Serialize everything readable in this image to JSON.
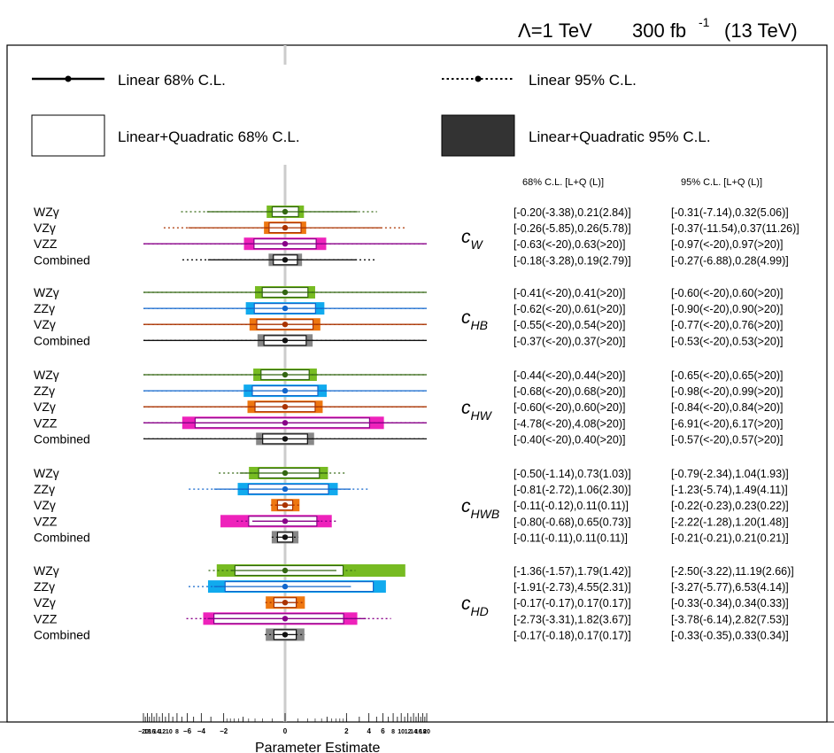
{
  "header": {
    "lambda": "Λ=1 TeV",
    "lumi_base": "300 fb",
    "lumi_exp": "-1",
    "energy": "(13 TeV)"
  },
  "legend": {
    "linear68": "Linear 68% C.L.",
    "linear95": "Linear 95% C.L.",
    "lq68": "Linear+Quadratic 68% C.L.",
    "lq95": "Linear+Quadratic 95% C.L."
  },
  "column_headers": {
    "c68": "68% C.L. [L+Q (L)]",
    "c95": "95% C.L. [L+Q (L)]"
  },
  "colors": {
    "WZγ": "#77bb22",
    "ZZγ": "#11aaee",
    "VZγ": "#ee7711",
    "VZZ": "#ee22bb",
    "Combined": "#888888",
    "lq95_legend": "#333333",
    "axis_band": "#cccccc"
  },
  "line_colors": {
    "WZγ": "#336611",
    "ZZγ": "#1166cc",
    "VZγ": "#aa3300",
    "VZZ": "#880088",
    "Combined": "#111111"
  },
  "chart_data": {
    "type": "scatter",
    "xlabel": "Parameter Estimate",
    "xlim": [
      -20,
      20
    ],
    "x_scale": "sign-log",
    "tick_labels": [
      "−20",
      "18",
      "16",
      "14",
      "12",
      "10",
      "8",
      "−6",
      "−4",
      "−2",
      "0",
      "2",
      "4",
      "6",
      "8",
      "10",
      "12",
      "14",
      "16",
      "18",
      "20"
    ],
    "groups": [
      {
        "coef": "c",
        "sub": "W",
        "rows": [
          {
            "label": "WZγ",
            "lq68": [
              -0.2,
              0.21
            ],
            "l68": [
              -3.38,
              2.84
            ],
            "lq95": [
              -0.31,
              0.32
            ],
            "l95": [
              -7.14,
              5.06
            ],
            "t68": "[-0.20(-3.38),0.21(2.84)]",
            "t95": "[-0.31(-7.14),0.32(5.06)]"
          },
          {
            "label": "VZγ",
            "lq68": [
              -0.26,
              0.26
            ],
            "l68": [
              -5.85,
              5.78
            ],
            "lq95": [
              -0.37,
              0.37
            ],
            "l95": [
              -11.54,
              11.26
            ],
            "t68": "[-0.26(-5.85),0.26(5.78)]",
            "t95": "[-0.37(-11.54),0.37(11.26)]"
          },
          {
            "label": "VZZ",
            "lq68": [
              -0.63,
              0.63
            ],
            "l68": [
              -20,
              20
            ],
            "lq95": [
              -0.97,
              0.97
            ],
            "l95": [
              -20,
              20
            ],
            "t68": "[-0.63(<-20),0.63(>20)]",
            "t95": "[-0.97(<-20),0.97(>20)]"
          },
          {
            "label": "Combined",
            "lq68": [
              -0.18,
              0.19
            ],
            "l68": [
              -3.28,
              2.79
            ],
            "lq95": [
              -0.27,
              0.28
            ],
            "l95": [
              -6.88,
              4.99
            ],
            "t68": "[-0.18(-3.28),0.19(2.79)]",
            "t95": "[-0.27(-6.88),0.28(4.99)]"
          }
        ]
      },
      {
        "coef": "c",
        "sub": "HB",
        "rows": [
          {
            "label": "WZγ",
            "lq68": [
              -0.41,
              0.41
            ],
            "l68": [
              -20,
              20
            ],
            "lq95": [
              -0.6,
              0.6
            ],
            "l95": [
              -20,
              20
            ],
            "t68": "[-0.41(<-20),0.41(>20)]",
            "t95": "[-0.60(<-20),0.60(>20)]"
          },
          {
            "label": "ZZγ",
            "lq68": [
              -0.62,
              0.61
            ],
            "l68": [
              -20,
              20
            ],
            "lq95": [
              -0.9,
              0.9
            ],
            "l95": [
              -20,
              20
            ],
            "t68": "[-0.62(<-20),0.61(>20)]",
            "t95": "[-0.90(<-20),0.90(>20)]"
          },
          {
            "label": "VZγ",
            "lq68": [
              -0.55,
              0.54
            ],
            "l68": [
              -20,
              20
            ],
            "lq95": [
              -0.77,
              0.76
            ],
            "l95": [
              -20,
              20
            ],
            "t68": "[-0.55(<-20),0.54(>20)]",
            "t95": "[-0.77(<-20),0.76(>20)]"
          },
          {
            "label": "Combined",
            "lq68": [
              -0.37,
              0.37
            ],
            "l68": [
              -20,
              20
            ],
            "lq95": [
              -0.53,
              0.53
            ],
            "l95": [
              -20,
              20
            ],
            "t68": "[-0.37(<-20),0.37(>20)]",
            "t95": "[-0.53(<-20),0.53(>20)]"
          }
        ]
      },
      {
        "coef": "c",
        "sub": "HW",
        "rows": [
          {
            "label": "WZγ",
            "lq68": [
              -0.44,
              0.44
            ],
            "l68": [
              -20,
              20
            ],
            "lq95": [
              -0.65,
              0.65
            ],
            "l95": [
              -20,
              20
            ],
            "t68": "[-0.44(<-20),0.44(>20)]",
            "t95": "[-0.65(<-20),0.65(>20)]"
          },
          {
            "label": "ZZγ",
            "lq68": [
              -0.68,
              0.68
            ],
            "l68": [
              -20,
              20
            ],
            "lq95": [
              -0.98,
              0.99
            ],
            "l95": [
              -20,
              20
            ],
            "t68": "[-0.68(<-20),0.68(>20)]",
            "t95": "[-0.98(<-20),0.99(>20)]"
          },
          {
            "label": "VZγ",
            "lq68": [
              -0.6,
              0.6
            ],
            "l68": [
              -20,
              20
            ],
            "lq95": [
              -0.84,
              0.84
            ],
            "l95": [
              -20,
              20
            ],
            "t68": "[-0.60(<-20),0.60(>20)]",
            "t95": "[-0.84(<-20),0.84(>20)]"
          },
          {
            "label": "VZZ",
            "lq68": [
              -4.78,
              4.08
            ],
            "l68": [
              -20,
              20
            ],
            "lq95": [
              -6.91,
              6.17
            ],
            "l95": [
              -20,
              20
            ],
            "t68": "[-4.78(<-20),4.08(>20)]",
            "t95": "[-6.91(<-20),6.17(>20)]"
          },
          {
            "label": "Combined",
            "lq68": [
              -0.4,
              0.4
            ],
            "l68": [
              -20,
              20
            ],
            "lq95": [
              -0.57,
              0.57
            ],
            "l95": [
              -20,
              20
            ],
            "t68": "[-0.40(<-20),0.40(>20)]",
            "t95": "[-0.57(<-20),0.57(>20)]"
          }
        ]
      },
      {
        "coef": "c",
        "sub": "HWB",
        "rows": [
          {
            "label": "WZγ",
            "lq68": [
              -0.5,
              0.73
            ],
            "l68": [
              -1.14,
              1.03
            ],
            "lq95": [
              -0.79,
              1.04
            ],
            "l95": [
              -2.34,
              1.93
            ],
            "t68": "[-0.50(-1.14),0.73(1.03)]",
            "t95": "[-0.79(-2.34),1.04(1.93)]"
          },
          {
            "label": "ZZγ",
            "lq68": [
              -0.81,
              1.06
            ],
            "l68": [
              -2.72,
              2.3
            ],
            "lq95": [
              -1.23,
              1.49
            ],
            "l95": [
              -5.74,
              4.11
            ],
            "t68": "[-0.81(-2.72),1.06(2.30)]",
            "t95": "[-1.23(-5.74),1.49(4.11)]"
          },
          {
            "label": "VZγ",
            "lq68": [
              -0.11,
              0.11
            ],
            "l68": [
              -0.12,
              0.11
            ],
            "lq95": [
              -0.22,
              0.23
            ],
            "l95": [
              -0.23,
              0.22
            ],
            "t68": "[-0.11(-0.12),0.11(0.11)]",
            "t95": "[-0.22(-0.23),0.23(0.22)]"
          },
          {
            "label": "VZZ",
            "lq68": [
              -0.8,
              0.65
            ],
            "l68": [
              -0.68,
              0.73
            ],
            "lq95": [
              -2.22,
              1.2
            ],
            "l95": [
              -1.28,
              1.48
            ],
            "t68": "[-0.80(-0.68),0.65(0.73)]",
            "t95": "[-2.22(-1.28),1.20(1.48)]"
          },
          {
            "label": "Combined",
            "lq68": [
              -0.11,
              0.11
            ],
            "l68": [
              -0.11,
              0.11
            ],
            "lq95": [
              -0.21,
              0.21
            ],
            "l95": [
              -0.21,
              0.21
            ],
            "t68": "[-0.11(-0.11),0.11(0.11)]",
            "t95": "[-0.21(-0.21),0.21(0.21)]"
          }
        ]
      },
      {
        "coef": "c",
        "sub": "HD",
        "rows": [
          {
            "label": "WZγ",
            "lq68": [
              -1.36,
              1.79
            ],
            "l68": [
              -1.57,
              1.42
            ],
            "lq95": [
              -2.5,
              11.19
            ],
            "l95": [
              -3.22,
              2.66
            ],
            "t68": "[-1.36(-1.57),1.79(1.42)]",
            "t95": "[-2.50(-3.22),11.19(2.66)]"
          },
          {
            "label": "ZZγ",
            "lq68": [
              -1.91,
              4.55
            ],
            "l68": [
              -2.73,
              2.31
            ],
            "lq95": [
              -3.27,
              6.53
            ],
            "l95": [
              -5.77,
              4.14
            ],
            "t68": "[-1.91(-2.73),4.55(2.31)]",
            "t95": "[-3.27(-5.77),6.53(4.14)]"
          },
          {
            "label": "VZγ",
            "lq68": [
              -0.17,
              0.17
            ],
            "l68": [
              -0.17,
              0.17
            ],
            "lq95": [
              -0.33,
              0.34
            ],
            "l95": [
              -0.34,
              0.33
            ],
            "t68": "[-0.17(-0.17),0.17(0.17)]",
            "t95": "[-0.33(-0.34),0.34(0.33)]"
          },
          {
            "label": "VZZ",
            "lq68": [
              -2.73,
              1.82
            ],
            "l68": [
              -3.31,
              3.67
            ],
            "lq95": [
              -3.78,
              2.82
            ],
            "l95": [
              -6.14,
              7.53
            ],
            "t68": "[-2.73(-3.31),1.82(3.67)]",
            "t95": "[-3.78(-6.14),2.82(7.53)]"
          },
          {
            "label": "Combined",
            "lq68": [
              -0.17,
              0.17
            ],
            "l68": [
              -0.18,
              0.17
            ],
            "lq95": [
              -0.33,
              0.33
            ],
            "l95": [
              -0.35,
              0.34
            ],
            "t68": "[-0.17(-0.18),0.17(0.17)]",
            "t95": "[-0.33(-0.35),0.33(0.34)]"
          }
        ]
      }
    ]
  }
}
